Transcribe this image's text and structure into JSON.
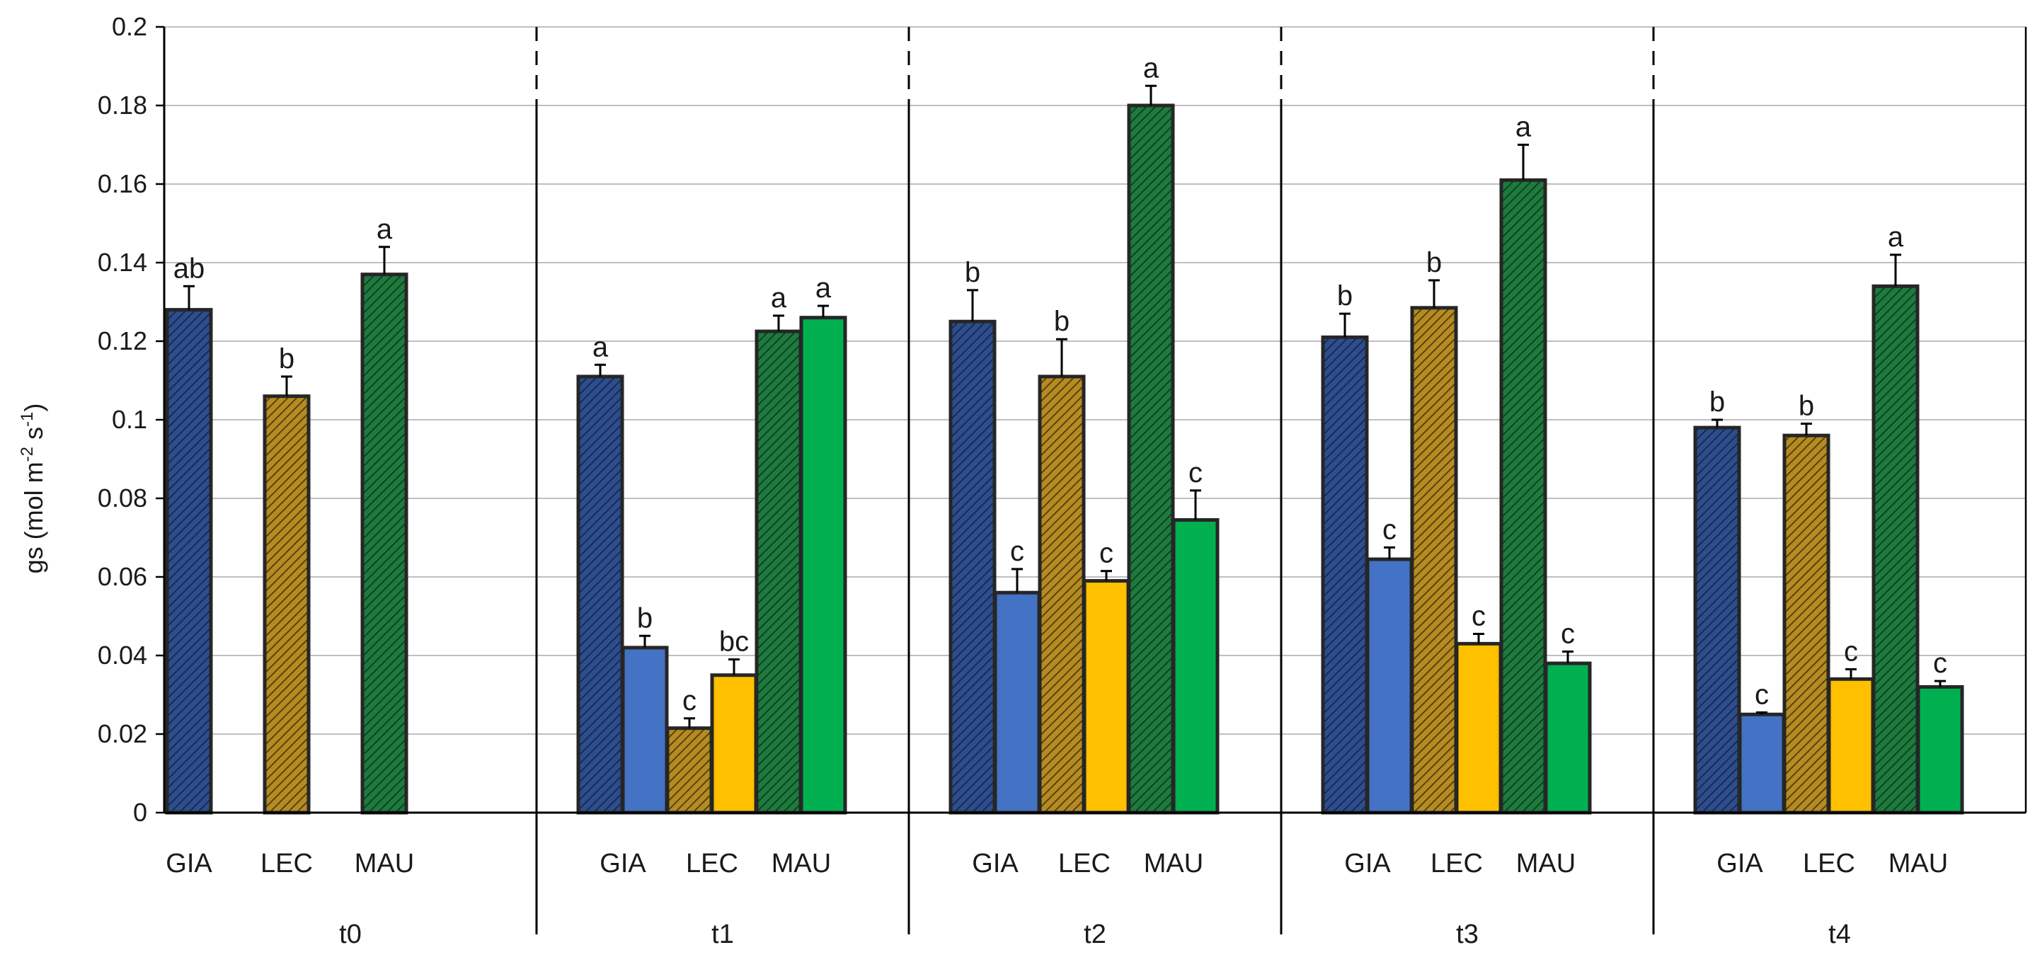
{
  "chart_data": {
    "type": "bar",
    "title": "",
    "xlabel": "",
    "ylabel": "gs (mol m-2 s-1)",
    "ylabel_parts": {
      "base": "gs (mol m",
      "exp1": "-2",
      "mid": " s",
      "exp2": "-1",
      "end": ")"
    },
    "ylim": [
      0,
      0.2
    ],
    "yticks": [
      "0",
      "0.02",
      "0.04",
      "0.06",
      "0.08",
      "0.1",
      "0.12",
      "0.14",
      "0.16",
      "0.18",
      "0.2"
    ],
    "grid": true,
    "colors": {
      "GIA": "#2d4d8c",
      "GIA_treated": "#4472c4",
      "LEC": "#a67d1a",
      "LEC_treated": "#ffc000",
      "MAU": "#1e7a3e",
      "MAU_treated": "#00b050"
    },
    "groups": [
      {
        "label": "t0",
        "genotypes": [
          "GIA",
          "LEC",
          "MAU"
        ],
        "bars": [
          {
            "genotype": "GIA",
            "treated": false,
            "value": 0.128,
            "error": 0.006,
            "letter": "ab"
          },
          {
            "genotype": "LEC",
            "treated": false,
            "value": 0.106,
            "error": 0.005,
            "letter": "b"
          },
          {
            "genotype": "MAU",
            "treated": false,
            "value": 0.137,
            "error": 0.007,
            "letter": "a"
          }
        ]
      },
      {
        "label": "t1",
        "genotypes": [
          "GIA",
          "LEC",
          "MAU"
        ],
        "bars": [
          {
            "genotype": "GIA",
            "treated": false,
            "value": 0.111,
            "error": 0.003,
            "letter": "a"
          },
          {
            "genotype": "GIA",
            "treated": true,
            "value": 0.042,
            "error": 0.003,
            "letter": "b"
          },
          {
            "genotype": "LEC",
            "treated": false,
            "value": 0.0215,
            "error": 0.0025,
            "letter": "c"
          },
          {
            "genotype": "LEC",
            "treated": true,
            "value": 0.035,
            "error": 0.004,
            "letter": "bc"
          },
          {
            "genotype": "MAU",
            "treated": false,
            "value": 0.1225,
            "error": 0.004,
            "letter": "a"
          },
          {
            "genotype": "MAU",
            "treated": true,
            "value": 0.126,
            "error": 0.003,
            "letter": "a"
          }
        ]
      },
      {
        "label": "t2",
        "genotypes": [
          "GIA",
          "LEC",
          "MAU"
        ],
        "bars": [
          {
            "genotype": "GIA",
            "treated": false,
            "value": 0.125,
            "error": 0.008,
            "letter": "b"
          },
          {
            "genotype": "GIA",
            "treated": true,
            "value": 0.056,
            "error": 0.006,
            "letter": "c"
          },
          {
            "genotype": "LEC",
            "treated": false,
            "value": 0.111,
            "error": 0.0095,
            "letter": "b"
          },
          {
            "genotype": "LEC",
            "treated": true,
            "value": 0.059,
            "error": 0.0025,
            "letter": "c"
          },
          {
            "genotype": "MAU",
            "treated": false,
            "value": 0.18,
            "error": 0.005,
            "letter": "a"
          },
          {
            "genotype": "MAU",
            "treated": true,
            "value": 0.0745,
            "error": 0.0075,
            "letter": "c"
          }
        ]
      },
      {
        "label": "t3",
        "genotypes": [
          "GIA",
          "LEC",
          "MAU"
        ],
        "bars": [
          {
            "genotype": "GIA",
            "treated": false,
            "value": 0.121,
            "error": 0.006,
            "letter": "b"
          },
          {
            "genotype": "GIA",
            "treated": true,
            "value": 0.0645,
            "error": 0.003,
            "letter": "c"
          },
          {
            "genotype": "LEC",
            "treated": false,
            "value": 0.1285,
            "error": 0.007,
            "letter": "b"
          },
          {
            "genotype": "LEC",
            "treated": true,
            "value": 0.043,
            "error": 0.0025,
            "letter": "c"
          },
          {
            "genotype": "MAU",
            "treated": false,
            "value": 0.161,
            "error": 0.009,
            "letter": "a"
          },
          {
            "genotype": "MAU",
            "treated": true,
            "value": 0.038,
            "error": 0.003,
            "letter": "c"
          }
        ]
      },
      {
        "label": "t4",
        "genotypes": [
          "GIA",
          "LEC",
          "MAU"
        ],
        "bars": [
          {
            "genotype": "GIA",
            "treated": false,
            "value": 0.098,
            "error": 0.002,
            "letter": "b"
          },
          {
            "genotype": "GIA",
            "treated": true,
            "value": 0.025,
            "error": 0.0005,
            "letter": "c"
          },
          {
            "genotype": "LEC",
            "treated": false,
            "value": 0.096,
            "error": 0.003,
            "letter": "b"
          },
          {
            "genotype": "LEC",
            "treated": true,
            "value": 0.034,
            "error": 0.0025,
            "letter": "c"
          },
          {
            "genotype": "MAU",
            "treated": false,
            "value": 0.134,
            "error": 0.008,
            "letter": "a"
          },
          {
            "genotype": "MAU",
            "treated": true,
            "value": 0.032,
            "error": 0.0015,
            "letter": "c"
          }
        ]
      }
    ]
  }
}
